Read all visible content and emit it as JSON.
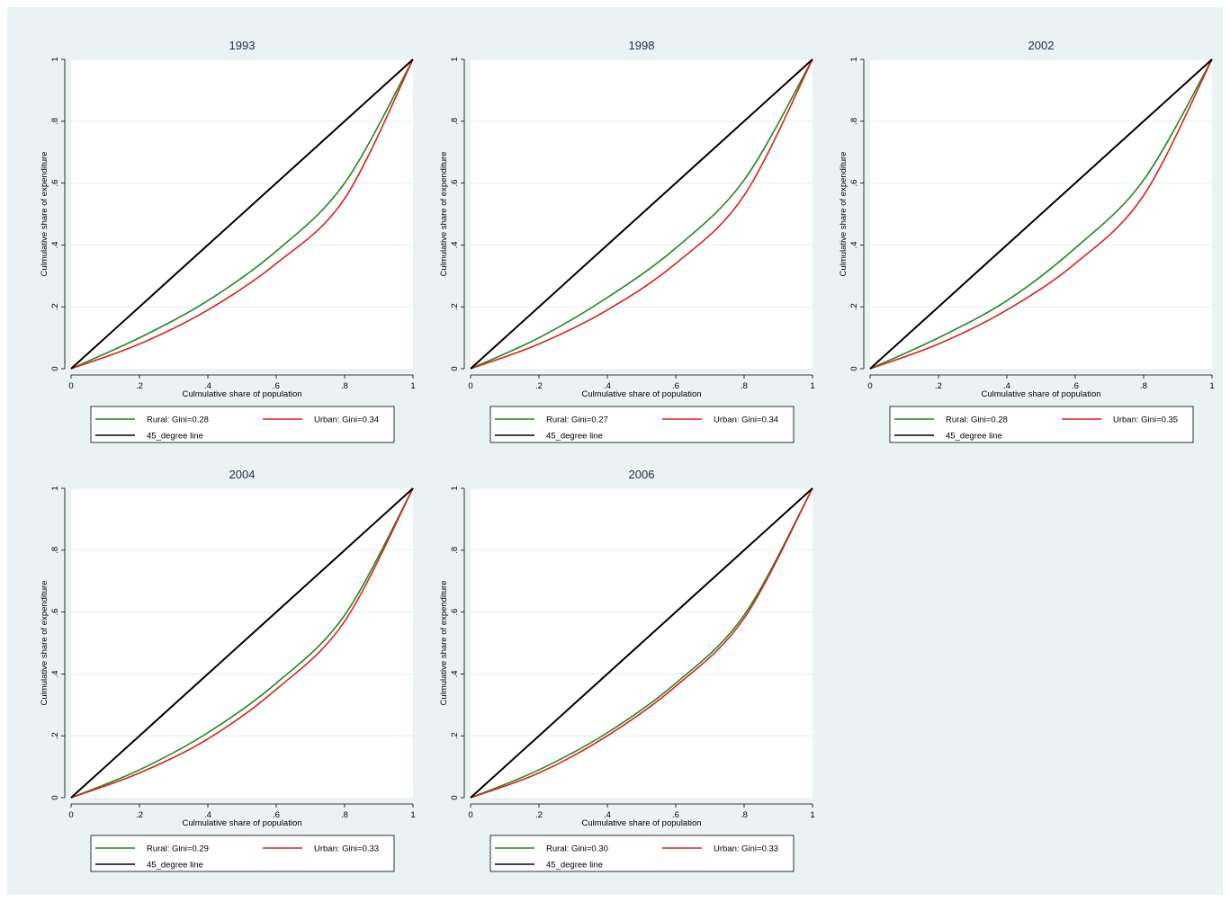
{
  "figure": {
    "background": "#eaf2f3",
    "plot_background": "#ffffff",
    "grid_color": "#e5ecef",
    "colors": {
      "rural": "#1f8a1f",
      "urban": "#e0201b",
      "line45": "#000000"
    }
  },
  "chart_data": [
    {
      "type": "line",
      "title": "1993",
      "xlabel": "Culmulative share of population",
      "ylabel": "Culmulative share of expenditure",
      "xlim": [
        0,
        1
      ],
      "ylim": [
        0,
        1
      ],
      "xticks": [
        "0",
        ".2",
        ".4",
        ".6",
        ".8",
        "1"
      ],
      "yticks": [
        "0",
        ".2",
        ".4",
        ".6",
        ".8",
        "1"
      ],
      "grid": true,
      "legend_position": "bottom",
      "x": [
        0,
        0.2,
        0.4,
        0.6,
        0.8,
        1
      ],
      "series": [
        {
          "name": "Rural: Gini=0.28",
          "values": [
            0,
            0.1,
            0.22,
            0.38,
            0.6,
            1
          ]
        },
        {
          "name": "Urban: Gini=0.34",
          "values": [
            0,
            0.08,
            0.19,
            0.34,
            0.55,
            1
          ]
        },
        {
          "name": "45_degree line",
          "values": [
            0,
            0.2,
            0.4,
            0.6,
            0.8,
            1
          ]
        }
      ]
    },
    {
      "type": "line",
      "title": "1998",
      "xlabel": "Culmulative share of population",
      "ylabel": "Culmulative share of expenditure",
      "xlim": [
        0,
        1
      ],
      "ylim": [
        0,
        1
      ],
      "xticks": [
        "0",
        ".2",
        ".4",
        ".6",
        ".8",
        "1"
      ],
      "yticks": [
        "0",
        ".2",
        ".4",
        ".6",
        ".8",
        "1"
      ],
      "grid": true,
      "legend_position": "bottom",
      "x": [
        0,
        0.2,
        0.4,
        0.6,
        0.8,
        1
      ],
      "series": [
        {
          "name": "Rural: Gini=0.27",
          "values": [
            0,
            0.1,
            0.23,
            0.39,
            0.61,
            1
          ]
        },
        {
          "name": "Urban: Gini=0.34",
          "values": [
            0,
            0.08,
            0.19,
            0.34,
            0.56,
            1
          ]
        },
        {
          "name": "45_degree line",
          "values": [
            0,
            0.2,
            0.4,
            0.6,
            0.8,
            1
          ]
        }
      ]
    },
    {
      "type": "line",
      "title": "2002",
      "xlabel": "Culmulative share of population",
      "ylabel": "Culmulative share of expenditure",
      "xlim": [
        0,
        1
      ],
      "ylim": [
        0,
        1
      ],
      "xticks": [
        "0",
        ".2",
        ".4",
        ".6",
        ".8",
        "1"
      ],
      "yticks": [
        "0",
        ".2",
        ".4",
        ".6",
        ".8",
        "1"
      ],
      "grid": true,
      "legend_position": "bottom",
      "x": [
        0,
        0.2,
        0.4,
        0.6,
        0.8,
        1
      ],
      "series": [
        {
          "name": "Rural: Gini=0.28",
          "values": [
            0,
            0.1,
            0.22,
            0.39,
            0.61,
            1
          ]
        },
        {
          "name": "Urban: Gini=0.35",
          "values": [
            0,
            0.08,
            0.19,
            0.34,
            0.56,
            1
          ]
        },
        {
          "name": "45_degree line",
          "values": [
            0,
            0.2,
            0.4,
            0.6,
            0.8,
            1
          ]
        }
      ]
    },
    {
      "type": "line",
      "title": "2004",
      "xlabel": "Culmulative share of population",
      "ylabel": "Culmulative share of expenditure",
      "xlim": [
        0,
        1
      ],
      "ylim": [
        0,
        1
      ],
      "xticks": [
        "0",
        ".2",
        ".4",
        ".6",
        ".8",
        "1"
      ],
      "yticks": [
        "0",
        ".2",
        ".4",
        ".6",
        ".8",
        "1"
      ],
      "grid": true,
      "legend_position": "bottom",
      "x": [
        0,
        0.2,
        0.4,
        0.6,
        0.8,
        1
      ],
      "series": [
        {
          "name": "Rural: Gini=0.29",
          "values": [
            0,
            0.09,
            0.21,
            0.37,
            0.59,
            1
          ]
        },
        {
          "name": "Urban: Gini=0.33",
          "values": [
            0,
            0.08,
            0.19,
            0.35,
            0.57,
            1
          ]
        },
        {
          "name": "45_degree line",
          "values": [
            0,
            0.2,
            0.4,
            0.6,
            0.8,
            1
          ]
        }
      ]
    },
    {
      "type": "line",
      "title": "2006",
      "xlabel": "Culmulative share of population",
      "ylabel": "Culmulative share of expenditure",
      "xlim": [
        0,
        1
      ],
      "ylim": [
        0,
        1
      ],
      "xticks": [
        "0",
        ".2",
        ".4",
        ".6",
        ".8",
        "1"
      ],
      "yticks": [
        "0",
        ".2",
        ".4",
        ".6",
        ".8",
        "1"
      ],
      "grid": true,
      "legend_position": "bottom",
      "x": [
        0,
        0.2,
        0.4,
        0.6,
        0.8,
        1
      ],
      "series": [
        {
          "name": "Rural: Gini=0.30",
          "values": [
            0,
            0.09,
            0.21,
            0.37,
            0.59,
            1
          ]
        },
        {
          "name": "Urban: Gini=0.33",
          "values": [
            0,
            0.08,
            0.2,
            0.36,
            0.58,
            1
          ]
        },
        {
          "name": "45_degree line",
          "values": [
            0,
            0.2,
            0.4,
            0.6,
            0.8,
            1
          ]
        }
      ]
    }
  ]
}
